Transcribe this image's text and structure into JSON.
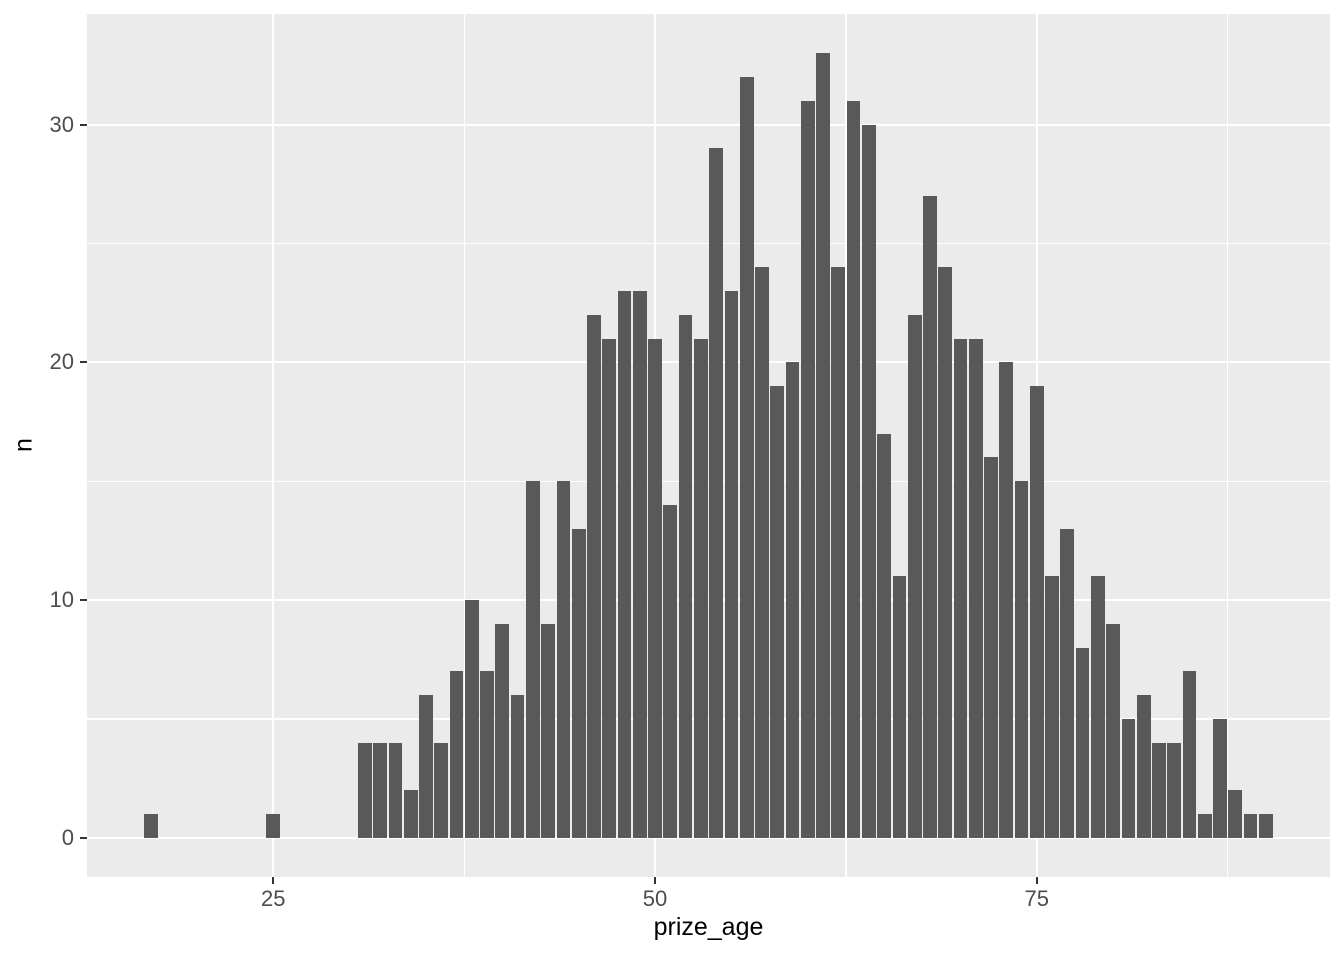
{
  "chart_data": {
    "type": "bar",
    "variant": "histogram",
    "title": "",
    "xlabel": "prize_age",
    "ylabel": "n",
    "x": [
      17,
      25,
      31,
      32,
      33,
      34,
      35,
      36,
      37,
      38,
      39,
      40,
      41,
      42,
      43,
      44,
      45,
      46,
      47,
      48,
      49,
      50,
      51,
      52,
      53,
      54,
      55,
      56,
      57,
      58,
      59,
      60,
      61,
      62,
      63,
      64,
      65,
      66,
      67,
      68,
      69,
      70,
      71,
      72,
      73,
      74,
      75,
      76,
      77,
      78,
      79,
      80,
      81,
      82,
      83,
      84,
      85,
      86,
      87,
      88,
      89,
      90
    ],
    "values": [
      1,
      1,
      4,
      4,
      4,
      2,
      6,
      4,
      7,
      10,
      7,
      9,
      6,
      15,
      9,
      15,
      13,
      22,
      21,
      23,
      23,
      21,
      14,
      22,
      21,
      29,
      23,
      32,
      24,
      19,
      20,
      31,
      33,
      24,
      31,
      30,
      17,
      11,
      22,
      27,
      24,
      21,
      21,
      16,
      20,
      15,
      19,
      11,
      13,
      8,
      11,
      9,
      5,
      6,
      4,
      4,
      7,
      1,
      5,
      2,
      1,
      1
    ],
    "bar_width": 0.9,
    "x_ticks": [
      25,
      50,
      75
    ],
    "x_tick_labels": [
      "25",
      "50",
      "75"
    ],
    "x_minor_ticks": [
      37.5,
      62.5,
      87.5
    ],
    "y_ticks": [
      0,
      10,
      20,
      30
    ],
    "y_tick_labels": [
      "0",
      "10",
      "20",
      "30"
    ],
    "y_minor_ticks": [
      5,
      15,
      25
    ],
    "x_range": [
      12.8,
      94.2
    ],
    "y_range": [
      -1.65,
      34.65
    ],
    "grid": true,
    "legend_position": "none",
    "colors": {
      "bar_fill": "#595959",
      "panel_background": "#EBEBEB",
      "plot_background": "#FFFFFF",
      "gridline": "#FFFFFF",
      "tick_label": "#4D4D4D",
      "tick_mark": "#333333",
      "axis_title": "#000000"
    }
  }
}
